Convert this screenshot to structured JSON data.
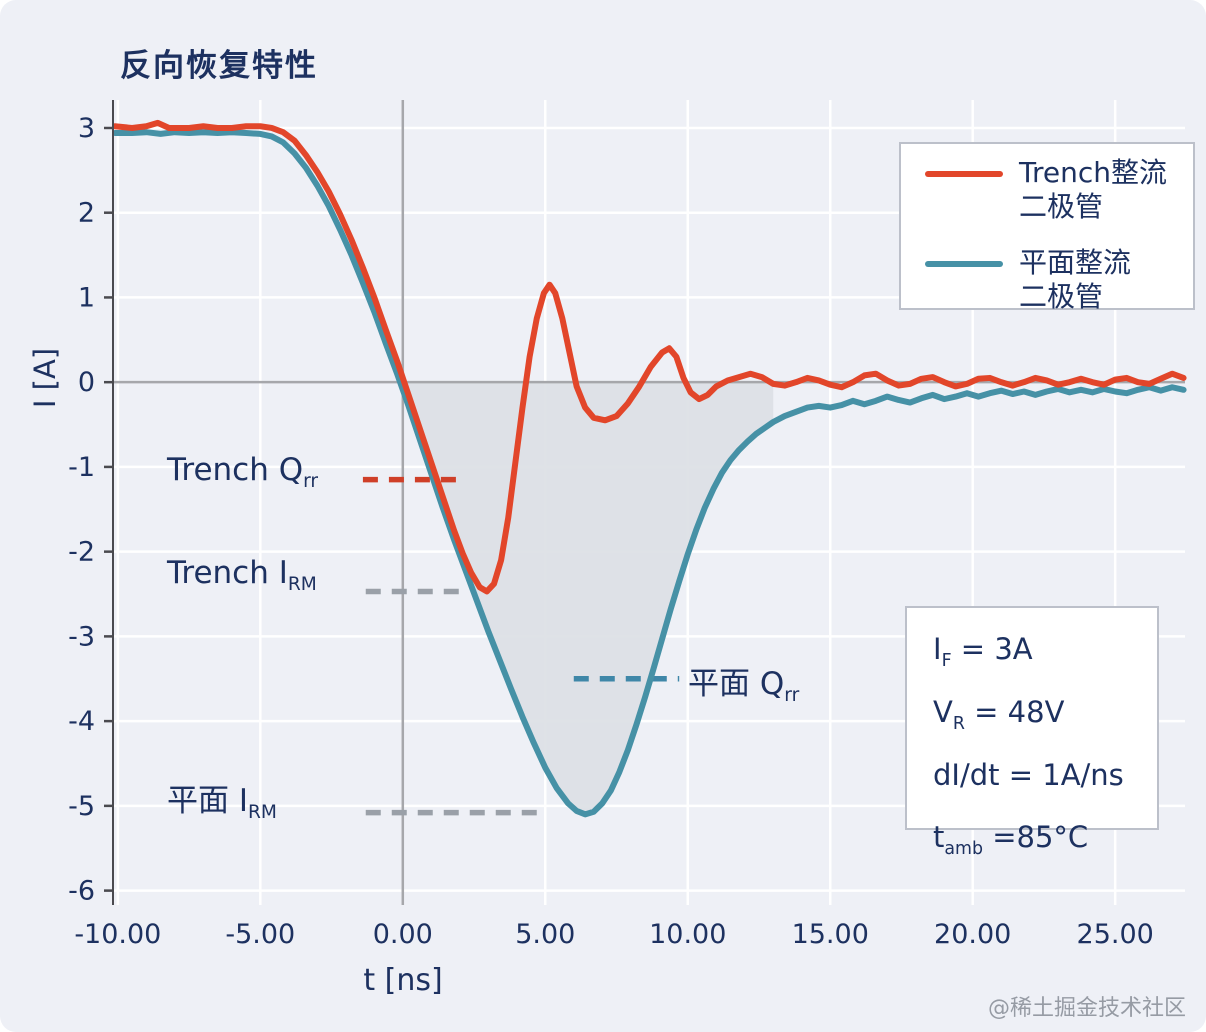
{
  "page": {
    "watermark": "@稀土掘金技术社区"
  },
  "annotations": [
    {
      "text": "Trench Q",
      "sub": "rr"
    },
    {
      "text": "Trench I",
      "sub": "RM"
    },
    {
      "text": "平面 Q",
      "sub": "rr"
    },
    {
      "text": "平面 I",
      "sub": "RM"
    }
  ],
  "info": {
    "lines": [
      {
        "pre": "I",
        "sub": "F",
        "post": " = 3A"
      },
      {
        "pre": "V",
        "sub": "R",
        "post": " = 48V"
      },
      {
        "pre": "dI/dt = 1A/ns"
      },
      {
        "pre": "t",
        "sub": "amb",
        "post": " =85°C"
      }
    ]
  },
  "legend": {
    "items": [
      {
        "line1": "Trench整流",
        "line2": "二极管",
        "color": "#e2462a"
      },
      {
        "line1": "平面整流",
        "line2": "二极管",
        "color": "#4691a6"
      }
    ]
  },
  "chart_data": {
    "type": "line",
    "title": "反向恢复特性",
    "xlabel": "t [ns]",
    "ylabel": "I [A]",
    "xlim": [
      -10.17,
      27.45
    ],
    "ylim": [
      -6.17,
      3.33
    ],
    "grid": true,
    "legend_position": "top-right",
    "background": "#eef0f6",
    "grid_color": "#ffffff",
    "zero_axis_color": "#a6a7ab",
    "text_color": "#1d3160",
    "x_ticks": {
      "values": [
        -10,
        -5,
        0,
        5,
        10,
        15,
        20,
        25
      ],
      "labels": [
        "-10.00",
        "-5.00",
        "0.00",
        "5.00",
        "10.00",
        "15.00",
        "20.00",
        "25.00"
      ]
    },
    "y_ticks": {
      "values": [
        3,
        2,
        1,
        0,
        -1,
        -2,
        -3,
        -4,
        -5,
        -6
      ],
      "labels": [
        "3",
        "2",
        "1",
        "0",
        "-1",
        "-2",
        "-3",
        "-4",
        "-5",
        "-6"
      ]
    },
    "series": [
      {
        "name": "Trench整流二极管",
        "color": "#e2462a",
        "points": [
          [
            -10.1,
            3.02
          ],
          [
            -9.5,
            3.0
          ],
          [
            -9,
            3.02
          ],
          [
            -8.6,
            3.06
          ],
          [
            -8.2,
            3.0
          ],
          [
            -7.5,
            3.0
          ],
          [
            -7,
            3.02
          ],
          [
            -6.5,
            3.0
          ],
          [
            -6,
            3.0
          ],
          [
            -5.5,
            3.02
          ],
          [
            -5,
            3.02
          ],
          [
            -4.6,
            3.0
          ],
          [
            -4.2,
            2.95
          ],
          [
            -3.8,
            2.85
          ],
          [
            -3.4,
            2.68
          ],
          [
            -3,
            2.48
          ],
          [
            -2.6,
            2.25
          ],
          [
            -2.2,
            1.98
          ],
          [
            -1.8,
            1.68
          ],
          [
            -1.4,
            1.35
          ],
          [
            -1,
            1.0
          ],
          [
            -0.6,
            0.62
          ],
          [
            -0.2,
            0.25
          ],
          [
            0.2,
            -0.15
          ],
          [
            0.6,
            -0.55
          ],
          [
            1,
            -0.95
          ],
          [
            1.4,
            -1.35
          ],
          [
            1.8,
            -1.75
          ],
          [
            2.1,
            -2.02
          ],
          [
            2.4,
            -2.25
          ],
          [
            2.7,
            -2.42
          ],
          [
            2.95,
            -2.47
          ],
          [
            3.2,
            -2.38
          ],
          [
            3.45,
            -2.1
          ],
          [
            3.7,
            -1.6
          ],
          [
            3.95,
            -0.95
          ],
          [
            4.2,
            -0.3
          ],
          [
            4.45,
            0.3
          ],
          [
            4.7,
            0.75
          ],
          [
            4.95,
            1.05
          ],
          [
            5.15,
            1.15
          ],
          [
            5.35,
            1.05
          ],
          [
            5.6,
            0.75
          ],
          [
            5.85,
            0.35
          ],
          [
            6.1,
            -0.05
          ],
          [
            6.4,
            -0.3
          ],
          [
            6.7,
            -0.42
          ],
          [
            7.1,
            -0.45
          ],
          [
            7.5,
            -0.4
          ],
          [
            7.9,
            -0.25
          ],
          [
            8.3,
            -0.05
          ],
          [
            8.7,
            0.18
          ],
          [
            9.1,
            0.35
          ],
          [
            9.35,
            0.4
          ],
          [
            9.6,
            0.3
          ],
          [
            9.85,
            0.05
          ],
          [
            10.1,
            -0.12
          ],
          [
            10.4,
            -0.2
          ],
          [
            10.7,
            -0.15
          ],
          [
            11,
            -0.05
          ],
          [
            11.4,
            0.02
          ],
          [
            11.8,
            0.06
          ],
          [
            12.2,
            0.1
          ],
          [
            12.6,
            0.06
          ],
          [
            13,
            -0.02
          ],
          [
            13.4,
            -0.04
          ],
          [
            13.8,
            0.0
          ],
          [
            14.2,
            0.05
          ],
          [
            14.6,
            0.02
          ],
          [
            15,
            -0.03
          ],
          [
            15.4,
            -0.06
          ],
          [
            15.8,
            0.0
          ],
          [
            16.2,
            0.08
          ],
          [
            16.6,
            0.1
          ],
          [
            17,
            0.02
          ],
          [
            17.4,
            -0.04
          ],
          [
            17.8,
            -0.02
          ],
          [
            18.2,
            0.04
          ],
          [
            18.6,
            0.06
          ],
          [
            19,
            0.0
          ],
          [
            19.4,
            -0.05
          ],
          [
            19.8,
            -0.02
          ],
          [
            20.2,
            0.04
          ],
          [
            20.6,
            0.05
          ],
          [
            21,
            0.0
          ],
          [
            21.4,
            -0.04
          ],
          [
            21.8,
            0.0
          ],
          [
            22.2,
            0.05
          ],
          [
            22.6,
            0.02
          ],
          [
            23,
            -0.03
          ],
          [
            23.4,
            0.0
          ],
          [
            23.8,
            0.04
          ],
          [
            24.2,
            0.0
          ],
          [
            24.6,
            -0.03
          ],
          [
            25,
            0.03
          ],
          [
            25.4,
            0.05
          ],
          [
            25.8,
            0.0
          ],
          [
            26.2,
            -0.02
          ],
          [
            26.6,
            0.04
          ],
          [
            27,
            0.1
          ],
          [
            27.4,
            0.05
          ]
        ]
      },
      {
        "name": "平面整流二极管",
        "color": "#4691a6",
        "points": [
          [
            -10.1,
            2.94
          ],
          [
            -9.5,
            2.94
          ],
          [
            -9,
            2.95
          ],
          [
            -8.5,
            2.93
          ],
          [
            -8,
            2.95
          ],
          [
            -7.5,
            2.94
          ],
          [
            -7,
            2.95
          ],
          [
            -6.5,
            2.94
          ],
          [
            -6,
            2.95
          ],
          [
            -5.5,
            2.94
          ],
          [
            -5,
            2.93
          ],
          [
            -4.6,
            2.9
          ],
          [
            -4.2,
            2.83
          ],
          [
            -3.8,
            2.7
          ],
          [
            -3.4,
            2.53
          ],
          [
            -3,
            2.32
          ],
          [
            -2.6,
            2.08
          ],
          [
            -2.2,
            1.8
          ],
          [
            -1.8,
            1.5
          ],
          [
            -1.4,
            1.17
          ],
          [
            -1,
            0.83
          ],
          [
            -0.6,
            0.46
          ],
          [
            -0.2,
            0.1
          ],
          [
            0.2,
            -0.28
          ],
          [
            0.6,
            -0.68
          ],
          [
            1,
            -1.08
          ],
          [
            1.4,
            -1.48
          ],
          [
            1.8,
            -1.86
          ],
          [
            2.2,
            -2.22
          ],
          [
            2.6,
            -2.58
          ],
          [
            3,
            -2.94
          ],
          [
            3.4,
            -3.28
          ],
          [
            3.8,
            -3.62
          ],
          [
            4.2,
            -3.95
          ],
          [
            4.6,
            -4.26
          ],
          [
            5,
            -4.55
          ],
          [
            5.4,
            -4.79
          ],
          [
            5.8,
            -4.97
          ],
          [
            6.1,
            -5.06
          ],
          [
            6.4,
            -5.1
          ],
          [
            6.7,
            -5.07
          ],
          [
            7,
            -4.97
          ],
          [
            7.3,
            -4.82
          ],
          [
            7.6,
            -4.6
          ],
          [
            7.9,
            -4.34
          ],
          [
            8.2,
            -4.04
          ],
          [
            8.5,
            -3.72
          ],
          [
            8.8,
            -3.38
          ],
          [
            9.1,
            -3.03
          ],
          [
            9.4,
            -2.68
          ],
          [
            9.7,
            -2.35
          ],
          [
            10,
            -2.03
          ],
          [
            10.3,
            -1.74
          ],
          [
            10.6,
            -1.48
          ],
          [
            10.9,
            -1.26
          ],
          [
            11.2,
            -1.07
          ],
          [
            11.5,
            -0.92
          ],
          [
            11.8,
            -0.8
          ],
          [
            12.1,
            -0.7
          ],
          [
            12.4,
            -0.61
          ],
          [
            12.7,
            -0.54
          ],
          [
            13,
            -0.47
          ],
          [
            13.4,
            -0.4
          ],
          [
            13.8,
            -0.35
          ],
          [
            14.2,
            -0.3
          ],
          [
            14.6,
            -0.28
          ],
          [
            15,
            -0.3
          ],
          [
            15.4,
            -0.27
          ],
          [
            15.8,
            -0.22
          ],
          [
            16.2,
            -0.26
          ],
          [
            16.6,
            -0.22
          ],
          [
            17,
            -0.17
          ],
          [
            17.4,
            -0.21
          ],
          [
            17.8,
            -0.24
          ],
          [
            18.2,
            -0.19
          ],
          [
            18.6,
            -0.15
          ],
          [
            19,
            -0.2
          ],
          [
            19.4,
            -0.17
          ],
          [
            19.8,
            -0.13
          ],
          [
            20.2,
            -0.17
          ],
          [
            20.6,
            -0.13
          ],
          [
            21,
            -0.1
          ],
          [
            21.4,
            -0.14
          ],
          [
            21.8,
            -0.11
          ],
          [
            22.2,
            -0.15
          ],
          [
            22.6,
            -0.11
          ],
          [
            23,
            -0.08
          ],
          [
            23.4,
            -0.12
          ],
          [
            23.8,
            -0.09
          ],
          [
            24.2,
            -0.12
          ],
          [
            24.6,
            -0.08
          ],
          [
            25,
            -0.11
          ],
          [
            25.4,
            -0.13
          ],
          [
            25.8,
            -0.09
          ],
          [
            26.2,
            -0.06
          ],
          [
            26.6,
            -0.1
          ],
          [
            27,
            -0.06
          ],
          [
            27.4,
            -0.09
          ]
        ]
      }
    ],
    "shaded_area": {
      "series_index": 1,
      "from_t": 0,
      "to_t": 13,
      "baseline": 0,
      "color": "#dcdfe5",
      "opacity": 0.92
    },
    "annotation_lines": [
      {
        "name": "trench-qrr-dash",
        "x1": -1.4,
        "x2": 2.2,
        "y": -1.15,
        "color": "#cf3f28"
      },
      {
        "name": "trench-irm-dash",
        "x1": -1.3,
        "x2": 2.3,
        "y": -2.47,
        "color": "#9aa0a8"
      },
      {
        "name": "planar-qrr-dash",
        "x1": 6.0,
        "x2": 9.7,
        "y": -3.5,
        "color": "#3f87a8"
      },
      {
        "name": "planar-irm-dash",
        "x1": -1.3,
        "x2": 5.0,
        "y": -5.08,
        "color": "#9aa0a8"
      }
    ]
  }
}
